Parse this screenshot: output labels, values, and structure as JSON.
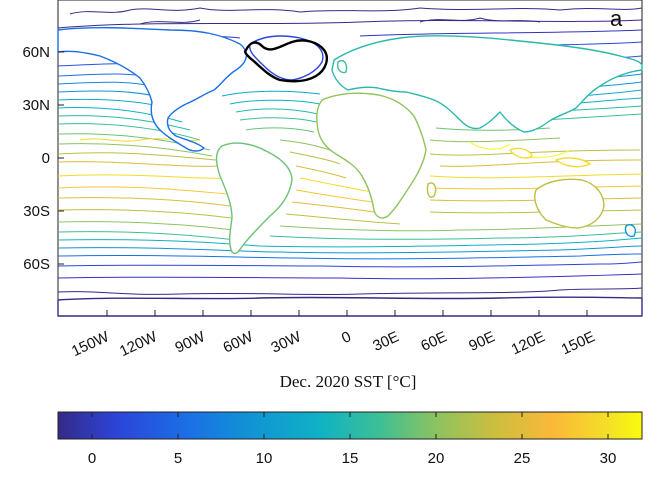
{
  "figure": {
    "panel_label": "a",
    "xlabel": "Dec. 2020 SST [°C]",
    "y_ticks": [
      "60N",
      "30N",
      "0",
      "30S",
      "60S"
    ],
    "x_ticks": [
      "150W",
      "120W",
      "90W",
      "60W",
      "30W",
      "0",
      "30E",
      "60E",
      "90E",
      "120E",
      "150E"
    ],
    "colorbar": {
      "ticks": [
        "0",
        "5",
        "10",
        "15",
        "20",
        "25",
        "30"
      ],
      "range": [
        -2,
        32
      ],
      "colormap": "parula"
    },
    "map_range": {
      "lon": [
        -170,
        170
      ],
      "lat": [
        -90,
        90
      ]
    },
    "highlight_region": "North Atlantic subpolar gyre (black outline)"
  }
}
